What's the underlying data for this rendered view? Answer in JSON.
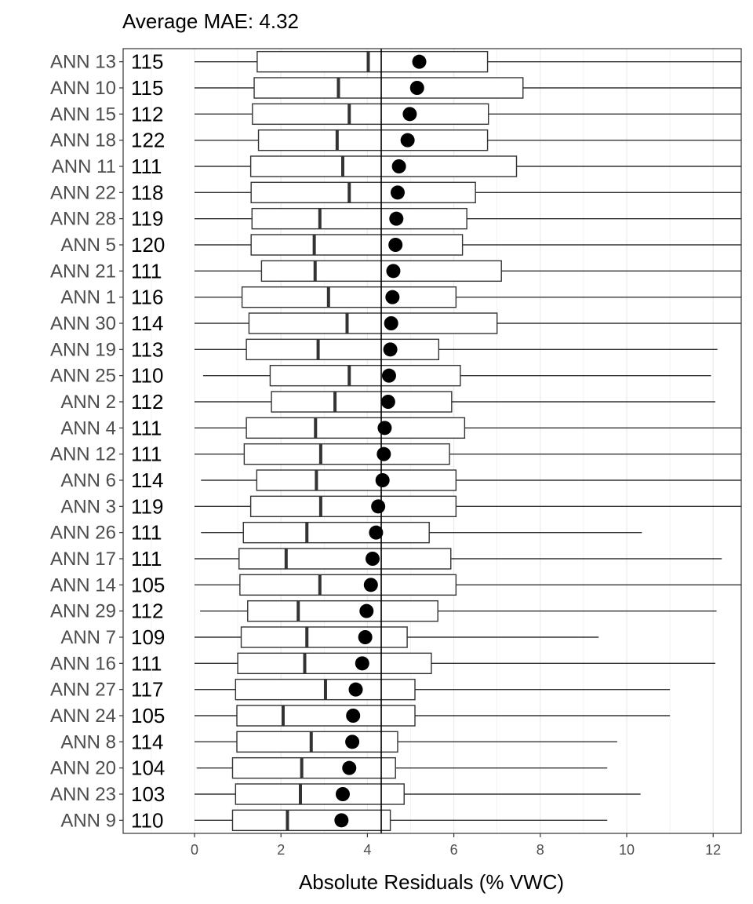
{
  "chart_data": {
    "type": "boxplot",
    "title": "Average MAE: 4.32",
    "xlabel": "Absolute Residuals (% VWC)",
    "ylabel": "",
    "xlim": [
      -1.6,
      12.65
    ],
    "x_ticks": [
      0,
      2,
      4,
      6,
      8,
      10,
      12
    ],
    "reference_line": 4.32,
    "grid": true,
    "legend": "none",
    "colors": {
      "box_fill": "#ffffff",
      "box_stroke": "#333333",
      "mean_point": "#000000",
      "grid": "#ebebeb",
      "panel_border": "#333333"
    },
    "rows": [
      {
        "label": "ANN 13",
        "n": "115",
        "min": 0.0,
        "q1": 1.45,
        "median": 4.02,
        "q3": 6.78,
        "max": 12.65,
        "mean": 5.2
      },
      {
        "label": "ANN 10",
        "n": "115",
        "min": 0.0,
        "q1": 1.38,
        "median": 3.33,
        "q3": 7.6,
        "max": 12.65,
        "mean": 5.15
      },
      {
        "label": "ANN 15",
        "n": "112",
        "min": 0.0,
        "q1": 1.34,
        "median": 3.58,
        "q3": 6.8,
        "max": 12.65,
        "mean": 4.98
      },
      {
        "label": "ANN 18",
        "n": "122",
        "min": 0.0,
        "q1": 1.48,
        "median": 3.3,
        "q3": 6.78,
        "max": 12.65,
        "mean": 4.93
      },
      {
        "label": "ANN 11",
        "n": "111",
        "min": 0.0,
        "q1": 1.3,
        "median": 3.43,
        "q3": 7.45,
        "max": 12.65,
        "mean": 4.73
      },
      {
        "label": "ANN 22",
        "n": "118",
        "min": 0.0,
        "q1": 1.31,
        "median": 3.58,
        "q3": 6.5,
        "max": 12.65,
        "mean": 4.7
      },
      {
        "label": "ANN 28",
        "n": "119",
        "min": 0.0,
        "q1": 1.33,
        "median": 2.9,
        "q3": 6.3,
        "max": 12.65,
        "mean": 4.67
      },
      {
        "label": "ANN 5",
        "n": "120",
        "min": 0.0,
        "q1": 1.31,
        "median": 2.77,
        "q3": 6.2,
        "max": 12.65,
        "mean": 4.65
      },
      {
        "label": "ANN 21",
        "n": "111",
        "min": 0.0,
        "q1": 1.55,
        "median": 2.79,
        "q3": 7.1,
        "max": 12.65,
        "mean": 4.6
      },
      {
        "label": "ANN 1",
        "n": "116",
        "min": 0.0,
        "q1": 1.1,
        "median": 3.1,
        "q3": 6.05,
        "max": 12.65,
        "mean": 4.58
      },
      {
        "label": "ANN 30",
        "n": "114",
        "min": 0.0,
        "q1": 1.26,
        "median": 3.53,
        "q3": 7.0,
        "max": 12.65,
        "mean": 4.55
      },
      {
        "label": "ANN 19",
        "n": "113",
        "min": 0.0,
        "q1": 1.2,
        "median": 2.86,
        "q3": 5.65,
        "max": 12.1,
        "mean": 4.53
      },
      {
        "label": "ANN 25",
        "n": "110",
        "min": 0.2,
        "q1": 1.75,
        "median": 3.58,
        "q3": 6.15,
        "max": 11.95,
        "mean": 4.5
      },
      {
        "label": "ANN 2",
        "n": "112",
        "min": 0.0,
        "q1": 1.78,
        "median": 3.25,
        "q3": 5.95,
        "max": 12.05,
        "mean": 4.48
      },
      {
        "label": "ANN 4",
        "n": "111",
        "min": 0.0,
        "q1": 1.2,
        "median": 2.8,
        "q3": 6.25,
        "max": 12.65,
        "mean": 4.4
      },
      {
        "label": "ANN 12",
        "n": "111",
        "min": 0.0,
        "q1": 1.15,
        "median": 2.92,
        "q3": 5.9,
        "max": 12.65,
        "mean": 4.38
      },
      {
        "label": "ANN 6",
        "n": "114",
        "min": 0.15,
        "q1": 1.44,
        "median": 2.82,
        "q3": 6.05,
        "max": 12.65,
        "mean": 4.35
      },
      {
        "label": "ANN 3",
        "n": "119",
        "min": 0.0,
        "q1": 1.3,
        "median": 2.92,
        "q3": 6.05,
        "max": 12.65,
        "mean": 4.25
      },
      {
        "label": "ANN 26",
        "n": "111",
        "min": 0.15,
        "q1": 1.13,
        "median": 2.6,
        "q3": 5.43,
        "max": 10.35,
        "mean": 4.2
      },
      {
        "label": "ANN 17",
        "n": "111",
        "min": 0.0,
        "q1": 1.03,
        "median": 2.12,
        "q3": 5.93,
        "max": 12.2,
        "mean": 4.12
      },
      {
        "label": "ANN 14",
        "n": "105",
        "min": 0.0,
        "q1": 1.05,
        "median": 2.9,
        "q3": 6.05,
        "max": 12.65,
        "mean": 4.08
      },
      {
        "label": "ANN 29",
        "n": "112",
        "min": 0.13,
        "q1": 1.23,
        "median": 2.4,
        "q3": 5.63,
        "max": 12.08,
        "mean": 3.98
      },
      {
        "label": "ANN 7",
        "n": "109",
        "min": 0.0,
        "q1": 1.08,
        "median": 2.6,
        "q3": 4.92,
        "max": 9.35,
        "mean": 3.95
      },
      {
        "label": "ANN 16",
        "n": "111",
        "min": 0.0,
        "q1": 1.0,
        "median": 2.55,
        "q3": 5.48,
        "max": 12.05,
        "mean": 3.88
      },
      {
        "label": "ANN 27",
        "n": "117",
        "min": 0.0,
        "q1": 0.95,
        "median": 3.03,
        "q3": 5.1,
        "max": 11.0,
        "mean": 3.73
      },
      {
        "label": "ANN 24",
        "n": "105",
        "min": 0.0,
        "q1": 0.98,
        "median": 2.05,
        "q3": 5.1,
        "max": 11.0,
        "mean": 3.67
      },
      {
        "label": "ANN 8",
        "n": "114",
        "min": 0.0,
        "q1": 0.98,
        "median": 2.7,
        "q3": 4.7,
        "max": 9.78,
        "mean": 3.65
      },
      {
        "label": "ANN 20",
        "n": "104",
        "min": 0.05,
        "q1": 0.88,
        "median": 2.48,
        "q3": 4.65,
        "max": 9.55,
        "mean": 3.58
      },
      {
        "label": "ANN 23",
        "n": "103",
        "min": 0.0,
        "q1": 0.95,
        "median": 2.45,
        "q3": 4.85,
        "max": 10.32,
        "mean": 3.43
      },
      {
        "label": "ANN 9",
        "n": "110",
        "min": 0.0,
        "q1": 0.88,
        "median": 2.15,
        "q3": 4.53,
        "max": 9.55,
        "mean": 3.4
      }
    ]
  }
}
